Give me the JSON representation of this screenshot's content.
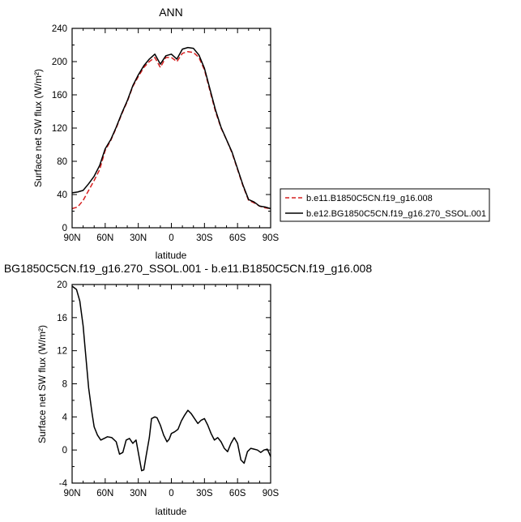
{
  "chart_data": [
    {
      "type": "line",
      "title": "ANN",
      "xlabel": "latitude",
      "ylabel": "Surface net SW flux (W/m²)",
      "x_tick_labels": [
        "90N",
        "60N",
        "30N",
        "0",
        "30S",
        "60S",
        "90S"
      ],
      "x_tick_values": [
        90,
        60,
        30,
        0,
        -30,
        -60,
        -90
      ],
      "y_tick_labels": [
        "0",
        "40",
        "80",
        "120",
        "160",
        "200",
        "240"
      ],
      "xlim": [
        90,
        -90
      ],
      "ylim": [
        0,
        240
      ],
      "legend_position": "right",
      "series": [
        {
          "name": "b.e11.B1850C5CN.f19_g16.008",
          "color": "#d62020",
          "dash": "dashed",
          "x": [
            90,
            85,
            80,
            75,
            70,
            65,
            60,
            55,
            50,
            45,
            40,
            35,
            30,
            25,
            20,
            15,
            10,
            5,
            0,
            -5,
            -10,
            -15,
            -20,
            -25,
            -30,
            -35,
            -40,
            -45,
            -50,
            -55,
            -60,
            -65,
            -70,
            -75,
            -80,
            -85,
            -90
          ],
          "values": [
            23,
            25,
            33,
            45,
            57,
            70,
            93,
            105,
            120,
            137,
            152,
            170,
            182,
            193,
            200,
            205,
            193,
            205,
            205,
            200,
            210,
            212,
            211,
            205,
            190,
            165,
            140,
            120,
            106,
            90,
            70,
            50,
            33,
            30,
            26,
            24,
            23
          ]
        },
        {
          "name": "b.e12.BG1850C5CN.f19_g16.270_SSOL.001",
          "color": "#000000",
          "dash": "solid",
          "x": [
            90,
            85,
            80,
            75,
            70,
            65,
            60,
            55,
            50,
            45,
            40,
            35,
            30,
            25,
            20,
            15,
            10,
            5,
            0,
            -5,
            -10,
            -15,
            -20,
            -25,
            -30,
            -35,
            -40,
            -45,
            -50,
            -55,
            -60,
            -65,
            -70,
            -75,
            -80,
            -85,
            -90
          ],
          "values": [
            42,
            43,
            45,
            53,
            62,
            75,
            95,
            106,
            121,
            138,
            153,
            171,
            184,
            195,
            203,
            209,
            197,
            207,
            209,
            203,
            215,
            217,
            216,
            208,
            192,
            167,
            142,
            121,
            106,
            91,
            71,
            51,
            34,
            31,
            26,
            25,
            23
          ]
        }
      ]
    },
    {
      "type": "line",
      "title": "BG1850C5CN.f19_g16.270_SSOL.001 - b.e11.B1850C5CN.f19_g16.008",
      "xlabel": "latitude",
      "ylabel": "Surface net SW flux (W/m²)",
      "x_tick_labels": [
        "90N",
        "60N",
        "30N",
        "0",
        "30S",
        "60S",
        "90S"
      ],
      "x_tick_values": [
        90,
        60,
        30,
        0,
        -30,
        -60,
        -90
      ],
      "y_tick_labels": [
        "-4",
        "0",
        "4",
        "8",
        "12",
        "16",
        "20"
      ],
      "xlim": [
        90,
        -90
      ],
      "ylim": [
        -4,
        20
      ],
      "series": [
        {
          "color": "#000000",
          "dash": "solid",
          "x": [
            90,
            86,
            83,
            80,
            78,
            75,
            72,
            70,
            67,
            64,
            61,
            58,
            54,
            50,
            47,
            44,
            41,
            38,
            35,
            32,
            29,
            27,
            25,
            23,
            20,
            18,
            15,
            13,
            10,
            7,
            4,
            2,
            0,
            -3,
            -6,
            -9,
            -12,
            -15,
            -18,
            -21,
            -24,
            -27,
            -30,
            -33,
            -36,
            -39,
            -42,
            -45,
            -48,
            -51,
            -54,
            -57,
            -60,
            -63,
            -66,
            -69,
            -72,
            -75,
            -78,
            -81,
            -84,
            -87,
            -90
          ],
          "values": [
            19.8,
            19.4,
            18.0,
            15.0,
            12.0,
            7.5,
            4.5,
            2.8,
            1.8,
            1.2,
            1.4,
            1.6,
            1.5,
            1.0,
            -0.5,
            -0.3,
            1.2,
            1.4,
            0.8,
            1.2,
            -1.0,
            -2.5,
            -2.4,
            -0.8,
            1.5,
            3.8,
            4.0,
            3.9,
            3.0,
            1.8,
            1.0,
            1.3,
            2.0,
            2.2,
            2.5,
            3.5,
            4.2,
            4.8,
            4.4,
            3.8,
            3.2,
            3.6,
            3.8,
            3.0,
            2.0,
            1.2,
            1.5,
            1.0,
            0.2,
            -0.2,
            0.8,
            1.5,
            0.8,
            -1.2,
            -1.6,
            -0.2,
            0.2,
            0.1,
            0.0,
            -0.3,
            0.0,
            0.1,
            -0.8
          ]
        }
      ]
    }
  ]
}
